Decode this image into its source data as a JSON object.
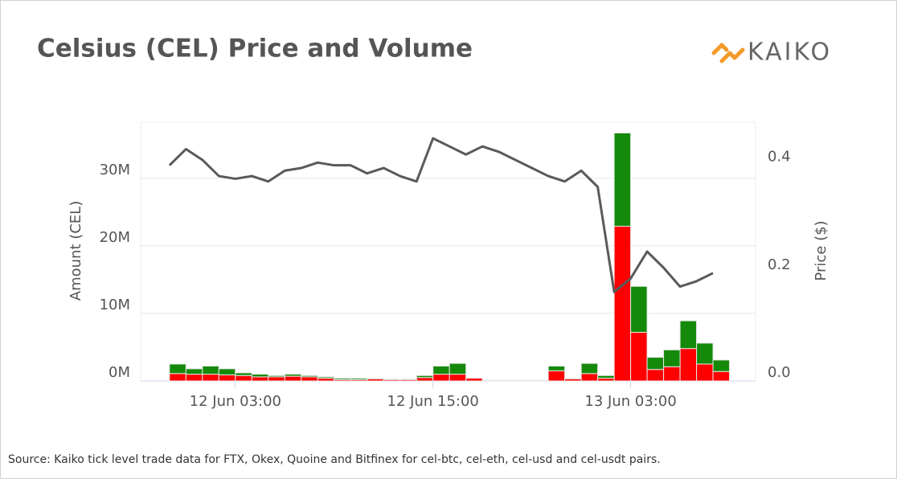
{
  "chart_data": {
    "type": "bar",
    "stacked": true,
    "grid": true,
    "title": "Celsius (CEL) Price and Volume",
    "logo": "KAIKO",
    "ylabel": "Amount (CEL)",
    "y2label": "Price ($)",
    "source": "Source: Kaiko tick level trade data for FTX, Okex, Quoine and Bitfinex for cel-btc, cel-eth, cel-usd and cel-usdt pairs.",
    "x": [
      "11 Jun 23:00",
      "12 Jun 00:00",
      "12 Jun 01:00",
      "12 Jun 02:00",
      "12 Jun 03:00",
      "12 Jun 04:00",
      "12 Jun 05:00",
      "12 Jun 06:00",
      "12 Jun 07:00",
      "12 Jun 08:00",
      "12 Jun 09:00",
      "12 Jun 10:00",
      "12 Jun 11:00",
      "12 Jun 12:00",
      "12 Jun 13:00",
      "12 Jun 14:00",
      "12 Jun 15:00",
      "12 Jun 16:00",
      "12 Jun 17:00",
      "12 Jun 18:00",
      "12 Jun 19:00",
      "12 Jun 20:00",
      "12 Jun 21:00",
      "12 Jun 22:00",
      "12 Jun 23:00",
      "13 Jun 00:00",
      "13 Jun 01:00",
      "13 Jun 02:00",
      "13 Jun 03:00",
      "13 Jun 04:00",
      "13 Jun 05:00",
      "13 Jun 06:00",
      "13 Jun 07:00",
      "13 Jun 08:00"
    ],
    "xlim": [
      "11 Jun 21:15",
      "13 Jun 10:35"
    ],
    "xticks": [
      "12 Jun 03:00",
      "12 Jun 15:00",
      "13 Jun 03:00"
    ],
    "ylim": [
      0,
      38300000
    ],
    "yticks": [
      {
        "value": 0,
        "label": "0M"
      },
      {
        "value": 10000000,
        "label": "10M"
      },
      {
        "value": 20000000,
        "label": "20M"
      },
      {
        "value": 30000000,
        "label": "30M"
      }
    ],
    "y2lim": [
      0,
      0.48
    ],
    "y2ticks": [
      {
        "value": 0,
        "label": "0.0"
      },
      0.2,
      0.4
    ],
    "series": [
      {
        "type": "bar",
        "color": "#ff0000",
        "values": [
          1100000,
          1000000,
          1000000,
          900000,
          800000,
          600000,
          600000,
          700000,
          600000,
          400000,
          200000,
          200000,
          300000,
          200000,
          200000,
          500000,
          1000000,
          1000000,
          400000,
          100000,
          100000,
          100000,
          100000,
          1500000,
          300000,
          1100000,
          400000,
          22900000,
          7200000,
          1700000,
          2100000,
          4800000,
          2500000,
          1400000
        ]
      },
      {
        "type": "bar",
        "color": "#158a0a",
        "values": [
          1400000,
          800000,
          1200000,
          900000,
          400000,
          400000,
          200000,
          300000,
          200000,
          200000,
          200000,
          200000,
          100000,
          100000,
          100000,
          300000,
          1200000,
          1600000,
          0,
          0,
          0,
          0,
          0,
          700000,
          100000,
          1500000,
          400000,
          13800000,
          6800000,
          1800000,
          2500000,
          4100000,
          3100000,
          1700000
        ]
      },
      {
        "type": "line",
        "axis": "y2",
        "color": "#5a5a5a",
        "values": [
          0.4,
          0.43,
          0.41,
          0.38,
          0.375,
          0.38,
          0.37,
          0.39,
          0.395,
          0.405,
          0.4,
          0.4,
          0.385,
          0.395,
          0.38,
          0.37,
          0.45,
          0.435,
          0.42,
          0.435,
          0.425,
          0.41,
          0.395,
          0.38,
          0.37,
          0.39,
          0.36,
          0.165,
          0.19,
          0.24,
          0.21,
          0.175,
          0.185,
          0.2
        ]
      }
    ]
  }
}
